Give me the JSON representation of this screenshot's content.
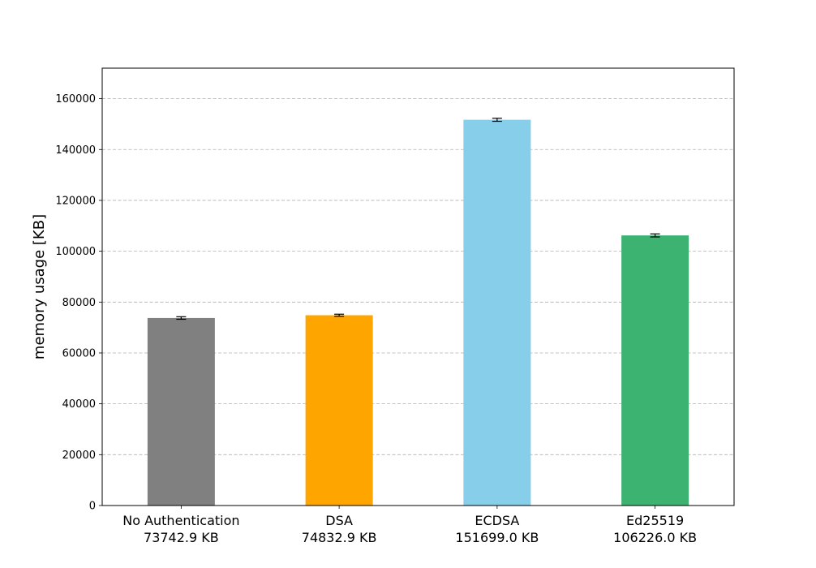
{
  "chart_data": {
    "type": "bar",
    "title": "",
    "xlabel": "",
    "ylabel": "memory usage [KB]",
    "categories": [
      "No Authentication",
      "DSA",
      "ECDSA",
      "Ed25519"
    ],
    "category_sublabels": [
      "73742.9 KB",
      "74832.9 KB",
      "151699.0 KB",
      "106226.0 KB"
    ],
    "values": [
      73742.9,
      74832.9,
      151699.0,
      106226.0
    ],
    "errors": [
      500,
      400,
      600,
      600
    ],
    "colors": [
      "#808080",
      "#ffa500",
      "#87ceeb",
      "#3cb371"
    ],
    "ylim": [
      0,
      172000
    ],
    "yticks": [
      0,
      20000,
      40000,
      60000,
      80000,
      100000,
      120000,
      140000,
      160000
    ],
    "ytick_labels": [
      "0",
      "20000",
      "40000",
      "60000",
      "80000",
      "100000",
      "120000",
      "140000",
      "160000"
    ],
    "grid": "y, dashed",
    "legend": "none"
  }
}
